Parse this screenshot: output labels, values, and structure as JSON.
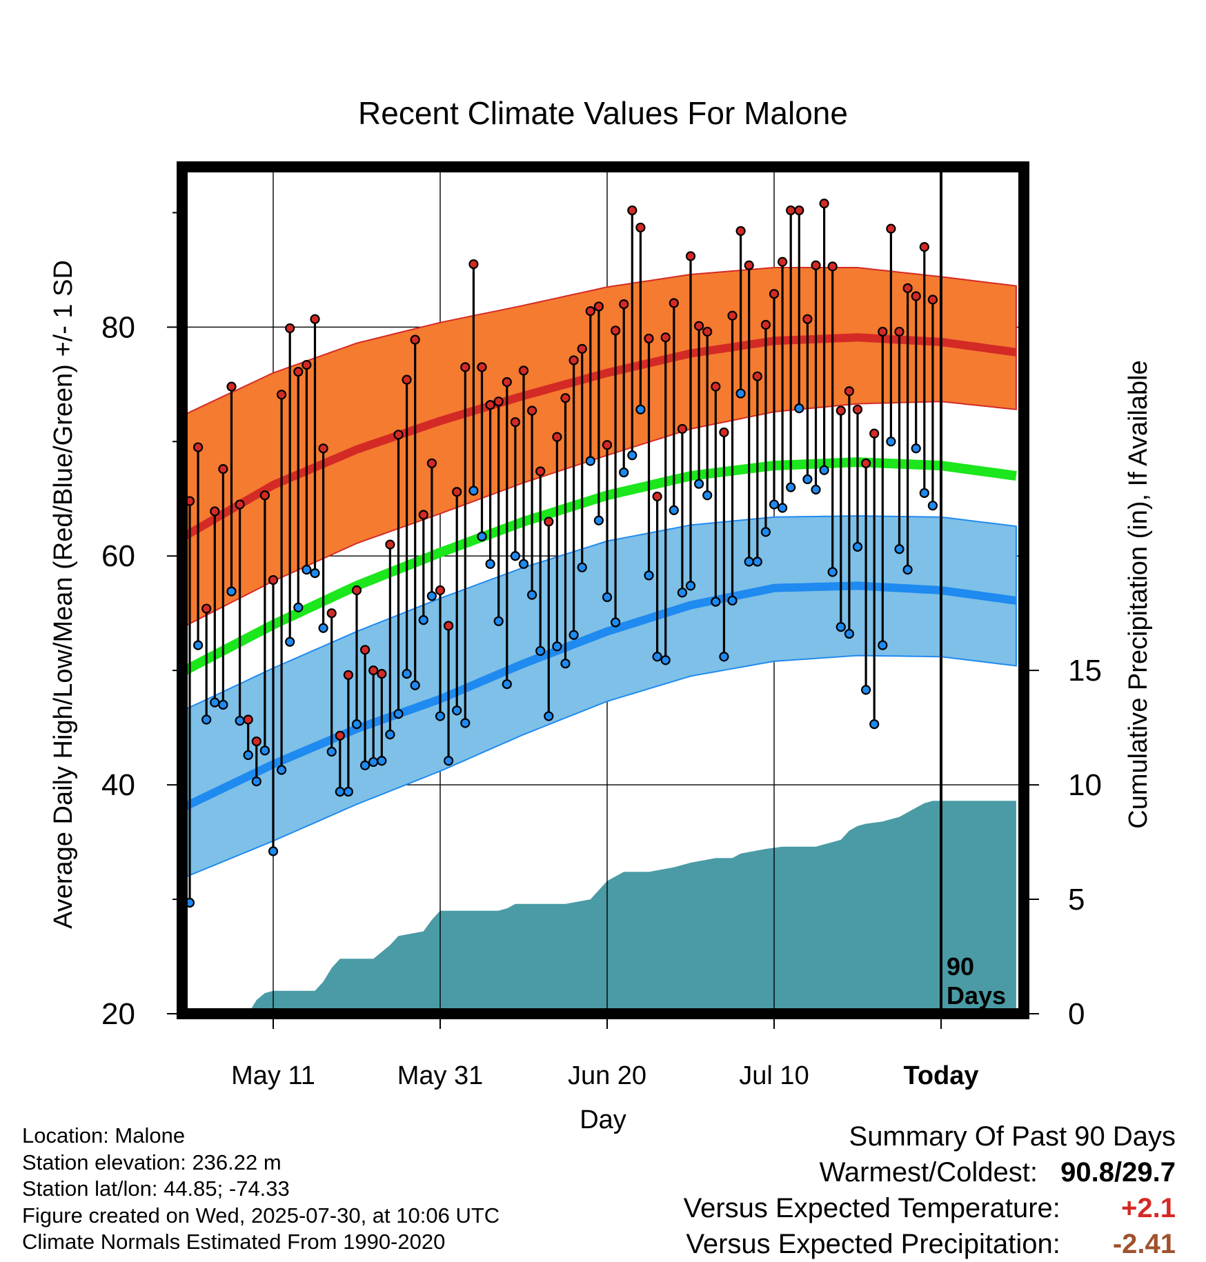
{
  "chart_data": {
    "type": "line",
    "title": "Recent Climate Values For Malone",
    "xlabel": "Day",
    "ylabel": "Average Daily High/Low/Mean (Red/Blue/Green) +/- 1 SD",
    "y2label": "Cumulative Precipitation (in), If Available",
    "x_range_days": [
      -93,
      9
    ],
    "x_ticks": [
      {
        "day": -80,
        "label": "May 11"
      },
      {
        "day": -60,
        "label": "May 31"
      },
      {
        "day": -40,
        "label": "Jun 20"
      },
      {
        "day": -20,
        "label": "Jul 10"
      },
      {
        "day": 0,
        "label": "Today"
      }
    ],
    "ylim": [
      20,
      94
    ],
    "yticks_major": [
      20,
      40,
      60,
      80
    ],
    "yticks_minor": [
      30,
      50,
      70,
      90
    ],
    "y2lim": [
      0,
      37
    ],
    "y2ticks": [
      0,
      5,
      10,
      15
    ],
    "grid": true,
    "today_marker_label": [
      "90",
      "Days"
    ],
    "colors": {
      "high_band": "#f47b30",
      "high_mean": "#d42a26",
      "low_band": "#7ec0e7",
      "low_mean": "#1f8af0",
      "mean": "#1ce61c",
      "precip": "#4a9ba5",
      "high_point": "#d42a26",
      "low_point": "#1f8af0"
    },
    "normals": {
      "days": [
        -94,
        -80,
        -70,
        -60,
        -50,
        -40,
        -30,
        -20,
        -10,
        0,
        9
      ],
      "high_mean": [
        60.3,
        66.2,
        69.3,
        71.8,
        74.0,
        76.0,
        77.7,
        78.8,
        79.1,
        78.7,
        77.8
      ],
      "high_sd_upper": [
        71.2,
        76.0,
        78.6,
        80.4,
        81.9,
        83.5,
        84.6,
        85.2,
        85.2,
        84.4,
        83.6
      ],
      "high_sd_lower": [
        52.6,
        57.8,
        61.1,
        63.7,
        66.4,
        68.8,
        71.1,
        72.6,
        73.3,
        73.5,
        72.8
      ],
      "mean": [
        48.7,
        54.0,
        57.4,
        60.3,
        63.0,
        65.3,
        67.0,
        67.9,
        68.2,
        67.9,
        67.0
      ],
      "low_mean": [
        36.9,
        41.8,
        44.9,
        47.5,
        50.6,
        53.4,
        55.7,
        57.2,
        57.4,
        57.0,
        56.1
      ],
      "low_sd_upper": [
        45.4,
        50.2,
        53.4,
        56.3,
        59.0,
        61.3,
        62.7,
        63.4,
        63.5,
        63.4,
        62.6
      ],
      "low_sd_lower": [
        30.9,
        35.1,
        38.3,
        41.2,
        44.4,
        47.3,
        49.5,
        50.8,
        51.3,
        51.2,
        50.4
      ]
    },
    "series": [
      {
        "name": "High",
        "days": [
          -90,
          -89,
          -88,
          -87,
          -86,
          -85,
          -84,
          -83,
          -82,
          -81,
          -80,
          -79,
          -78,
          -77,
          -76,
          -75,
          -74,
          -73,
          -72,
          -71,
          -70,
          -69,
          -68,
          -67,
          -66,
          -65,
          -64,
          -63,
          -62,
          -61,
          -60,
          -59,
          -58,
          -57,
          -56,
          -55,
          -54,
          -53,
          -52,
          -51,
          -50,
          -49,
          -48,
          -47,
          -46,
          -45,
          -44,
          -43,
          -42,
          -41,
          -40,
          -39,
          -38,
          -37,
          -36,
          -35,
          -34,
          -33,
          -32,
          -31,
          -30,
          -29,
          -28,
          -27,
          -26,
          -25,
          -24,
          -23,
          -22,
          -21,
          -20,
          -19,
          -18,
          -17,
          -16,
          -15,
          -14,
          -13,
          -12,
          -11,
          -10,
          -9,
          -8,
          -7,
          -6,
          -5,
          -4,
          -3,
          -2,
          -1
        ],
        "values": [
          64.8,
          69.5,
          55.4,
          63.9,
          67.6,
          74.8,
          64.5,
          45.7,
          43.8,
          65.3,
          57.9,
          74.1,
          79.9,
          76.1,
          76.7,
          80.7,
          69.4,
          55.0,
          44.3,
          49.6,
          57.0,
          51.8,
          50.0,
          49.7,
          61.0,
          70.6,
          75.4,
          78.9,
          63.6,
          68.1,
          57.0,
          53.9,
          65.6,
          76.5,
          85.5,
          76.5,
          73.2,
          73.5,
          75.2,
          71.7,
          76.2,
          72.7,
          67.4,
          63.0,
          70.4,
          73.8,
          77.1,
          78.1,
          81.4,
          81.8,
          69.7,
          79.7,
          82.0,
          90.2,
          88.7,
          79.0,
          65.2,
          79.1,
          82.1,
          71.1,
          86.2,
          80.1,
          79.6,
          74.8,
          70.8,
          81.0,
          88.4,
          85.4,
          75.7,
          80.2,
          82.9,
          85.7,
          90.2,
          90.2,
          80.7,
          85.4,
          90.8,
          85.3,
          72.7,
          74.4,
          72.8,
          68.1,
          70.7,
          79.6,
          88.6,
          79.6,
          83.4,
          82.7,
          87.0,
          82.4
        ]
      },
      {
        "name": "Low",
        "days": [
          -90,
          -89,
          -88,
          -87,
          -86,
          -85,
          -84,
          -83,
          -82,
          -81,
          -80,
          -79,
          -78,
          -77,
          -76,
          -75,
          -74,
          -73,
          -72,
          -71,
          -70,
          -69,
          -68,
          -67,
          -66,
          -65,
          -64,
          -63,
          -62,
          -61,
          -60,
          -59,
          -58,
          -57,
          -56,
          -55,
          -54,
          -53,
          -52,
          -51,
          -50,
          -49,
          -48,
          -47,
          -46,
          -45,
          -44,
          -43,
          -42,
          -41,
          -40,
          -39,
          -38,
          -37,
          -36,
          -35,
          -34,
          -33,
          -32,
          -31,
          -30,
          -29,
          -28,
          -27,
          -26,
          -25,
          -24,
          -23,
          -22,
          -21,
          -20,
          -19,
          -18,
          -17,
          -16,
          -15,
          -14,
          -13,
          -12,
          -11,
          -10,
          -9,
          -8,
          -7,
          -6,
          -5,
          -4,
          -3,
          -2,
          -1
        ],
        "values": [
          29.7,
          52.2,
          45.7,
          47.2,
          47.0,
          56.9,
          45.6,
          42.6,
          40.3,
          43.0,
          34.2,
          41.3,
          52.5,
          55.5,
          58.8,
          58.5,
          53.7,
          42.9,
          39.4,
          39.4,
          45.3,
          41.7,
          42.0,
          42.1,
          44.4,
          46.2,
          49.7,
          48.7,
          54.4,
          56.5,
          46.0,
          42.1,
          46.5,
          45.4,
          65.7,
          61.7,
          59.3,
          54.3,
          48.8,
          60.0,
          59.3,
          56.6,
          51.7,
          46.0,
          52.1,
          50.6,
          53.1,
          59.0,
          68.3,
          63.1,
          56.4,
          54.2,
          67.3,
          68.8,
          72.8,
          58.3,
          51.2,
          50.9,
          64.0,
          56.8,
          57.4,
          66.3,
          65.3,
          56.0,
          51.2,
          56.1,
          74.2,
          59.5,
          59.5,
          62.1,
          64.5,
          64.2,
          66.0,
          72.9,
          66.7,
          65.8,
          67.5,
          58.6,
          53.8,
          53.2,
          60.8,
          48.3,
          45.3,
          52.2,
          70.0,
          60.6,
          58.8,
          69.4,
          65.5,
          64.4
        ]
      }
    ],
    "precipitation": {
      "days": [
        -93,
        -83,
        -82,
        -81,
        -80,
        -75,
        -74,
        -73,
        -72,
        -68,
        -67,
        -66,
        -65,
        -62,
        -61,
        -60,
        -57,
        -53,
        -52,
        -51,
        -50,
        -45,
        -42,
        -41,
        -40,
        -39,
        -38,
        -35,
        -32,
        -30,
        -27,
        -25,
        -24,
        -21,
        -19,
        -15,
        -14,
        -12,
        -11,
        -10,
        -9,
        -7,
        -6,
        -5,
        -4,
        -3,
        -2,
        -1,
        0,
        9
      ],
      "values": [
        0,
        0,
        0.6,
        0.9,
        1.0,
        1.0,
        1.4,
        2.0,
        2.4,
        2.4,
        2.7,
        3.0,
        3.4,
        3.6,
        4.1,
        4.5,
        4.5,
        4.5,
        4.6,
        4.8,
        4.8,
        4.8,
        5.0,
        5.4,
        5.8,
        6.0,
        6.2,
        6.2,
        6.4,
        6.6,
        6.8,
        6.8,
        7.0,
        7.2,
        7.3,
        7.3,
        7.4,
        7.6,
        8.0,
        8.2,
        8.3,
        8.4,
        8.5,
        8.6,
        8.8,
        9.0,
        9.2,
        9.3,
        9.3,
        9.3
      ]
    },
    "annotations": [
      "90 Days"
    ]
  },
  "footer": {
    "location": "Location: Malone",
    "elevation": "Station elevation: 236.22 m",
    "latlon": "Station lat/lon: 44.85; -74.33",
    "created": "Figure created on Wed, 2025-07-30, at 10:06 UTC",
    "normals": "Climate Normals Estimated From 1990-2020"
  },
  "summary": {
    "title": "Summary Of Past 90 Days",
    "warmest_coldest_label": "Warmest/Coldest:",
    "warmest": "90.8",
    "separator": "/",
    "coldest": "29.7",
    "temp_label": "Versus Expected Temperature:",
    "temp_value": "+2.1",
    "temp_color": "#d42a26",
    "precip_label": "Versus Expected Precipitation:",
    "precip_value": "-2.41",
    "precip_color": "#a0522d"
  }
}
